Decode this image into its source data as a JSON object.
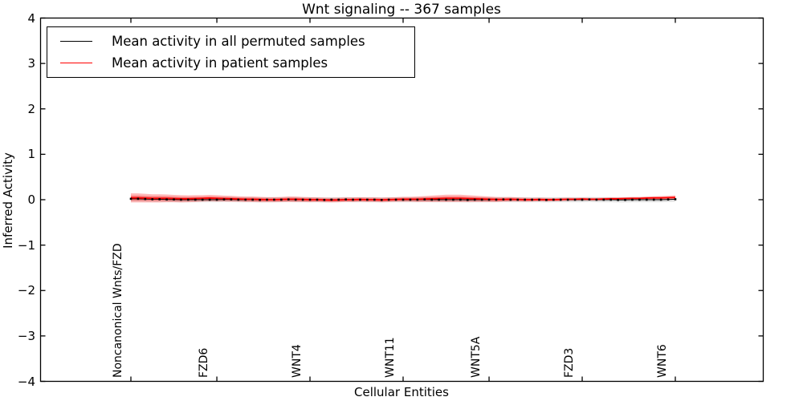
{
  "chart_data": {
    "type": "line",
    "title": "Wnt signaling -- 367 samples",
    "xlabel": "Cellular Entities",
    "ylabel": "Inferred Activity",
    "ylim": [
      -4,
      4
    ],
    "grid": false,
    "legend_position": "upper left",
    "yticks": [
      {
        "value": 4,
        "label": "4"
      },
      {
        "value": 3,
        "label": "3"
      },
      {
        "value": 2,
        "label": "2"
      },
      {
        "value": 1,
        "label": "1"
      },
      {
        "value": 0,
        "label": "0"
      },
      {
        "value": -1,
        "label": "−1"
      },
      {
        "value": -2,
        "label": "−2"
      },
      {
        "value": -3,
        "label": "−3"
      },
      {
        "value": -4,
        "label": "−4"
      }
    ],
    "n_points": 77,
    "entities": [
      {
        "label": "Noncanonical Wnts/FZD",
        "index": 0
      },
      {
        "label": "FZD6",
        "index": 12
      },
      {
        "label": "WNT4",
        "index": 25
      },
      {
        "label": "WNT11",
        "index": 38
      },
      {
        "label": "WNT5A",
        "index": 50
      },
      {
        "label": "FZD3",
        "index": 63
      },
      {
        "label": "WNT6",
        "index": 76
      }
    ],
    "legend": [
      {
        "label": "Mean activity in all permuted samples",
        "color": "#000000"
      },
      {
        "label": "Mean activity in patient samples",
        "color": "#ff0000"
      }
    ],
    "series": [
      {
        "name": "Mean activity in all permuted samples",
        "color": "#000000",
        "marker": "square",
        "band_halfwidth": 0.055,
        "band_color": "#888888",
        "values": [
          0.02,
          0.02,
          0.015,
          0.01,
          0.01,
          0.005,
          0.005,
          0,
          0,
          0,
          0,
          0,
          0,
          0.005,
          0.005,
          0,
          0,
          0,
          -0.005,
          0,
          0,
          0,
          0.005,
          0,
          0,
          0,
          0,
          -0.005,
          0,
          0,
          0.005,
          0,
          0,
          0,
          0,
          -0.005,
          0,
          0,
          0,
          0,
          0,
          0.005,
          0,
          0,
          0,
          0,
          0,
          -0.005,
          0,
          0,
          0,
          0,
          0.005,
          0,
          0,
          0,
          0,
          0,
          -0.005,
          0,
          0,
          0,
          0,
          0,
          0.005,
          0,
          0,
          0,
          -0.005,
          -0.005,
          0,
          0,
          0,
          0,
          0,
          0.005,
          0.01
        ]
      },
      {
        "name": "Mean activity in patient samples",
        "color": "#ff0000",
        "marker": "none",
        "band_color": "#ff0000",
        "values": [
          0.04,
          0.04,
          0.035,
          0.03,
          0.03,
          0.03,
          0.025,
          0.02,
          0.02,
          0.025,
          0.03,
          0.035,
          0.03,
          0.025,
          0.02,
          0.015,
          0.01,
          0.01,
          0.005,
          0,
          0,
          0.005,
          0.01,
          0.01,
          0.005,
          0,
          0,
          -0.005,
          -0.01,
          -0.005,
          0,
          0,
          0.005,
          0,
          0,
          -0.005,
          0,
          0.005,
          0.01,
          0.01,
          0.01,
          0.015,
          0.02,
          0.025,
          0.03,
          0.03,
          0.03,
          0.025,
          0.02,
          0.015,
          0.01,
          0.005,
          0.005,
          0.01,
          0.005,
          0,
          0,
          0.005,
          0,
          0,
          0.005,
          0.01,
          0.01,
          0.015,
          0.01,
          0.01,
          0.015,
          0.02,
          0.02,
          0.025,
          0.03,
          0.03,
          0.035,
          0.04,
          0.04,
          0.045,
          0.05
        ],
        "band_halfwidths": [
          0.1,
          0.1,
          0.095,
          0.09,
          0.09,
          0.085,
          0.08,
          0.08,
          0.075,
          0.075,
          0.07,
          0.07,
          0.07,
          0.065,
          0.065,
          0.06,
          0.06,
          0.06,
          0.06,
          0.055,
          0.055,
          0.055,
          0.06,
          0.06,
          0.055,
          0.055,
          0.05,
          0.05,
          0.05,
          0.05,
          0.05,
          0.05,
          0.05,
          0.05,
          0.05,
          0.05,
          0.05,
          0.05,
          0.055,
          0.055,
          0.06,
          0.065,
          0.07,
          0.075,
          0.08,
          0.08,
          0.08,
          0.075,
          0.07,
          0.065,
          0.06,
          0.055,
          0.05,
          0.05,
          0.045,
          0.045,
          0.04,
          0.04,
          0.04,
          0.035,
          0.035,
          0.035,
          0.03,
          0.03,
          0.03,
          0.03,
          0.03,
          0.03,
          0.03,
          0.03,
          0.03,
          0.03,
          0.035,
          0.035,
          0.04,
          0.04,
          0.045
        ]
      }
    ]
  }
}
